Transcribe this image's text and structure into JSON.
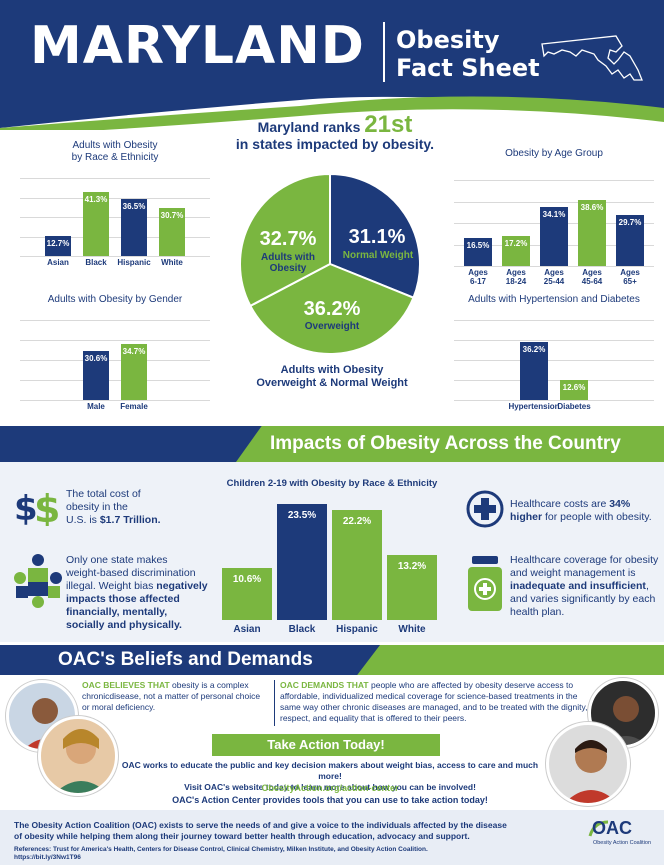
{
  "header": {
    "state": "MARYLAND",
    "title_line1": "Obesity",
    "title_line2": "Fact Sheet",
    "colors": {
      "navy": "#1d3a7a",
      "green": "#7ab640"
    }
  },
  "rank": {
    "text_before": "Maryland ranks ",
    "rank": "21st",
    "text_after": "in states impacted by obesity."
  },
  "pie": {
    "caption_line1": "Adults with Obesity",
    "caption_line2": "Overweight & Normal Weight",
    "slices": [
      {
        "label": "Normal Weight",
        "value": 31.1,
        "pct": "31.1%",
        "color": "#1d3a7a"
      },
      {
        "label": "Overweight",
        "value": 36.2,
        "pct": "36.2%",
        "color": "#7ab640"
      },
      {
        "label_line1": "Adults with",
        "label_line2": "Obesity",
        "value": 32.7,
        "pct": "32.7%",
        "color": "#7ab640"
      }
    ]
  },
  "chart_data": [
    {
      "type": "bar",
      "title_line1": "Adults with Obesity",
      "title_line2": "by Race & Ethnicity",
      "categories": [
        "Asian",
        "Black",
        "Hispanic",
        "White"
      ],
      "values": [
        12.7,
        41.3,
        36.5,
        30.7
      ],
      "labels": [
        "12.7%",
        "41.3%",
        "36.5%",
        "30.7%"
      ],
      "colors": [
        "#1d3a7a",
        "#7ab640",
        "#1d3a7a",
        "#7ab640"
      ],
      "ylim": [
        0,
        50
      ]
    },
    {
      "type": "bar",
      "title_line1": "Obesity by Age Group",
      "categories": [
        "Ages 6-17",
        "Ages 18-24",
        "Ages 25-44",
        "Ages 45-64",
        "Ages 65+"
      ],
      "category_lines": [
        [
          "Ages",
          "6-17"
        ],
        [
          "Ages",
          "18-24"
        ],
        [
          "Ages",
          "25-44"
        ],
        [
          "Ages",
          "45-64"
        ],
        [
          "Ages",
          "65+"
        ]
      ],
      "values": [
        16.5,
        17.2,
        34.1,
        38.6,
        29.7
      ],
      "labels": [
        "16.5%",
        "17.2%",
        "34.1%",
        "38.6%",
        "29.7%"
      ],
      "colors": [
        "#1d3a7a",
        "#7ab640",
        "#1d3a7a",
        "#7ab640",
        "#1d3a7a"
      ],
      "ylim": [
        0,
        50
      ]
    },
    {
      "type": "bar",
      "title_line1": "Adults with Obesity by Gender",
      "categories": [
        "Male",
        "Female"
      ],
      "values": [
        30.6,
        34.7
      ],
      "labels": [
        "30.6%",
        "34.7%"
      ],
      "colors": [
        "#1d3a7a",
        "#7ab640"
      ],
      "ylim": [
        0,
        50
      ]
    },
    {
      "type": "bar",
      "title_line1": "Adults with Hypertension and Diabetes",
      "categories": [
        "Hypertension",
        "Diabetes"
      ],
      "values": [
        36.2,
        12.6
      ],
      "labels": [
        "36.2%",
        "12.6%"
      ],
      "colors": [
        "#1d3a7a",
        "#7ab640"
      ],
      "ylim": [
        0,
        50
      ]
    },
    {
      "type": "bar",
      "title_line1": "Children 2-19 with Obesity by Race & Ethnicity",
      "categories": [
        "Asian",
        "Black",
        "Hispanic",
        "White"
      ],
      "values": [
        10.6,
        23.5,
        22.2,
        13.2
      ],
      "labels": [
        "10.6%",
        "23.5%",
        "22.2%",
        "13.2%"
      ],
      "colors": [
        "#7ab640",
        "#1d3a7a",
        "#7ab640",
        "#7ab640"
      ],
      "ylim": [
        0,
        25
      ]
    }
  ],
  "impacts": {
    "title": "Impacts of Obesity Across the Country",
    "cost": {
      "line1": "The total cost of",
      "line2": "obesity in the",
      "line3_pre": "U.S. is ",
      "amount": "$1.7 Trillion.",
      "icon": "dollar-icon"
    },
    "bias": {
      "line1": "Only one state makes",
      "line2": "weight-based discrimination",
      "line3_pre": "illegal. Weight bias ",
      "bold1": "negatively",
      "bold2": "impacts those affected",
      "bold3": "financially, mentally,",
      "bold4": "socially and physically.",
      "icon": "puzzle-people-icon"
    },
    "healthcare_cost": {
      "pre": "Healthcare costs are ",
      "bold1": "34%",
      "bold2": "higher",
      "post": " for people with obesity.",
      "icon": "medical-cross-icon"
    },
    "coverage": {
      "line1": "Healthcare coverage for obesity",
      "line2": "and weight management is",
      "bold1": "inadequate and insufficient",
      "post1": ",",
      "line4": "and varies significantly by each",
      "line5": "health plan.",
      "icon": "pill-bottle-icon"
    }
  },
  "beliefs": {
    "title": "OAC's Beliefs and Demands",
    "believes_label": "OAC BELIEVES THAT",
    "believes_text1": " obesity is a complex",
    "believes_text2": "chronicdisease, not a matter of personal choice",
    "believes_text3": "or moral deficiency.",
    "demands_label": "OAC DEMANDS THAT",
    "demands_text1": " people who are affected by obesity deserve access to",
    "demands_text2": "affordable, individualized medical coverage for science-based treatments in the",
    "demands_text3": "same way other chronic diseases are managed, and to be treated with the dignity,",
    "demands_text4": "respect, and equality that is offered to their peers."
  },
  "action": {
    "button": "Take Action Today!",
    "text1": "OAC works to educate the public and key decision makers about weight bias, access to care and much more!",
    "text2": "Visit OAC's website today to learn more about how you can be involved!",
    "link": "ObesityAction.org/action-center",
    "center": "OAC's Action Center provides tools that you can use to take action today!"
  },
  "footer": {
    "line1": "The Obesity Action Coalition (OAC) exists to serve the needs of and give a voice to the individuals affected by the disease",
    "line2": "of obesity while helping them along their journey toward better health through education, advocacy and support.",
    "refs1": "References: Trust for America's Health, Centers for Disease Control, Clinical Chemistry, Milken Institute, and Obesity Action Coalition.",
    "refs2": "https://bit.ly/3Nw1T96",
    "logo_letters": "OAC",
    "logo_tag": "Obesity Action Coalition"
  }
}
